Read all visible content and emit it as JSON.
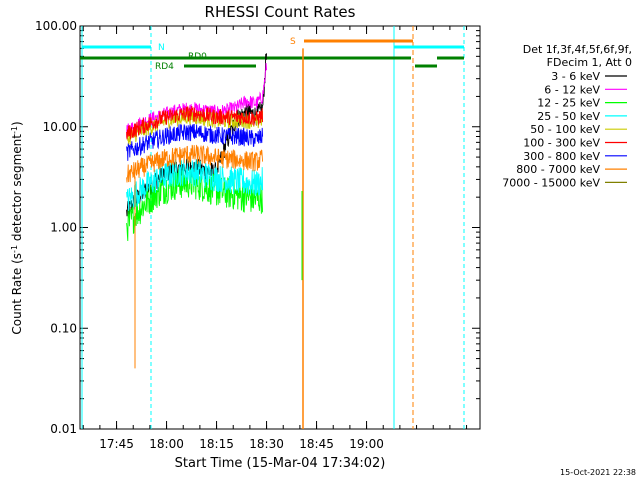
{
  "chart_data": {
    "type": "line",
    "title": "RHESSI Count Rates",
    "xlabel": "Start Time (15-Mar-04 17:34:02)",
    "ylabel_main": "Count Rate (s",
    "ylabel_exp": "-1",
    "ylabel_tail": " detector segment",
    "ylabel_exp2": "-1",
    "ylabel_close": ")",
    "y_scale": "log",
    "ylim": [
      0.01,
      100
    ],
    "x_range_hours": [
      17.5672,
      19.5672
    ],
    "x_ticks": [
      {
        "label": "17:45",
        "t": 17.75
      },
      {
        "label": "18:00",
        "t": 18.0
      },
      {
        "label": "18:15",
        "t": 18.25
      },
      {
        "label": "18:30",
        "t": 18.5
      },
      {
        "label": "18:45",
        "t": 18.75
      },
      {
        "label": "19:00",
        "t": 19.0
      }
    ],
    "y_ticks": [
      {
        "label": "0.01",
        "v": 0.01
      },
      {
        "label": "0.10",
        "v": 0.1
      },
      {
        "label": "1.00",
        "v": 1.0
      },
      {
        "label": "10.00",
        "v": 10.0
      },
      {
        "label": "100.00",
        "v": 100.0
      }
    ],
    "legend_header": [
      "Det 1f,3f,4f,5f,6f,9f,",
      "FDecim 1, Att 0"
    ],
    "legend_placement": "right",
    "series": [
      {
        "name": "3 - 6 keV",
        "color": "#000000",
        "x": [
          17.8,
          17.85,
          17.9,
          17.95,
          18.0,
          18.05,
          18.1,
          18.15,
          18.2,
          18.25,
          18.3,
          18.35,
          18.4,
          18.45,
          18.48,
          18.5
        ],
        "y": [
          1.4,
          1.9,
          2.4,
          3.0,
          3.5,
          3.8,
          4.0,
          3.9,
          3.6,
          3.5,
          7.0,
          12.0,
          14.0,
          13.0,
          15.0,
          55.0
        ]
      },
      {
        "name": "6 - 12 keV",
        "color": "#ff00ff",
        "x": [
          17.8,
          17.85,
          17.9,
          17.95,
          18.0,
          18.05,
          18.1,
          18.15,
          18.2,
          18.25,
          18.3,
          18.35,
          18.4,
          18.45,
          18.48,
          18.5
        ],
        "y": [
          9.0,
          10.5,
          11.5,
          12.5,
          13.5,
          14.5,
          15.0,
          15.0,
          14.5,
          14.0,
          14.5,
          15.5,
          18.0,
          17.0,
          20.0,
          40.0
        ]
      },
      {
        "name": "12 - 25 keV",
        "color": "#00ff00",
        "x": [
          17.8,
          17.85,
          17.9,
          17.95,
          18.0,
          18.05,
          18.1,
          18.15,
          18.2,
          18.25,
          18.3,
          18.35,
          18.4,
          18.45,
          18.48
        ],
        "y": [
          1.0,
          1.4,
          1.8,
          2.2,
          2.5,
          2.7,
          2.8,
          2.7,
          2.5,
          2.3,
          2.2,
          2.1,
          2.0,
          1.9,
          2.0
        ]
      },
      {
        "name": "25 - 50 keV",
        "color": "#00ffff",
        "x": [
          17.8,
          17.85,
          17.9,
          17.95,
          18.0,
          18.05,
          18.1,
          18.15,
          18.2,
          18.25,
          18.3,
          18.35,
          18.4,
          18.45,
          18.48
        ],
        "y": [
          1.8,
          2.2,
          2.6,
          3.0,
          3.3,
          3.5,
          3.6,
          3.5,
          3.3,
          3.1,
          3.0,
          2.9,
          2.8,
          2.7,
          2.9
        ]
      },
      {
        "name": "50 - 100 keV",
        "color": "#cccc00",
        "x": [
          17.8,
          17.85,
          17.9,
          17.95,
          18.0,
          18.05,
          18.1,
          18.15,
          18.2,
          18.25,
          18.3,
          18.35,
          18.4,
          18.45,
          18.48
        ],
        "y": [
          7.5,
          8.5,
          9.5,
          10.5,
          11.5,
          12.0,
          12.5,
          12.5,
          12.0,
          11.5,
          11.5,
          11.5,
          11.5,
          11.0,
          12.0
        ]
      },
      {
        "name": "100 - 300 keV",
        "color": "#ff0000",
        "x": [
          17.8,
          17.85,
          17.9,
          17.95,
          18.0,
          18.05,
          18.1,
          18.15,
          18.2,
          18.25,
          18.3,
          18.35,
          18.4,
          18.45,
          18.48
        ],
        "y": [
          8.5,
          9.5,
          10.5,
          11.5,
          12.5,
          13.0,
          13.5,
          13.5,
          13.0,
          12.5,
          12.5,
          12.5,
          12.5,
          12.0,
          13.0
        ]
      },
      {
        "name": "300 - 800 keV",
        "color": "#0000ff",
        "x": [
          17.8,
          17.85,
          17.9,
          17.95,
          18.0,
          18.05,
          18.1,
          18.15,
          18.2,
          18.25,
          18.3,
          18.35,
          18.4,
          18.45,
          18.48
        ],
        "y": [
          5.5,
          6.2,
          6.9,
          7.5,
          8.1,
          8.5,
          8.8,
          8.8,
          8.5,
          8.2,
          8.0,
          8.0,
          7.8,
          7.5,
          8.0
        ]
      },
      {
        "name": "800 - 7000 keV",
        "color": "#ff8000",
        "x": [
          17.8,
          17.85,
          17.9,
          17.95,
          18.0,
          18.05,
          18.1,
          18.15,
          18.2,
          18.25,
          18.3,
          18.35,
          18.4,
          18.45,
          18.48
        ],
        "y": [
          3.3,
          3.7,
          4.1,
          4.5,
          4.9,
          5.1,
          5.3,
          5.3,
          5.1,
          4.9,
          4.8,
          4.7,
          4.6,
          4.5,
          4.8
        ]
      },
      {
        "name": "7000 - 15000 keV",
        "color": "#808000",
        "x": [],
        "y": []
      }
    ],
    "markers": [
      {
        "label": "N",
        "color": "#00ffff"
      },
      {
        "label": "S",
        "color": "#ff8000"
      },
      {
        "label": "RD0",
        "color": "#008000"
      },
      {
        "label": "RD4",
        "color": "#008000"
      }
    ]
  },
  "footer_date": "15-Oct-2021 22:38"
}
